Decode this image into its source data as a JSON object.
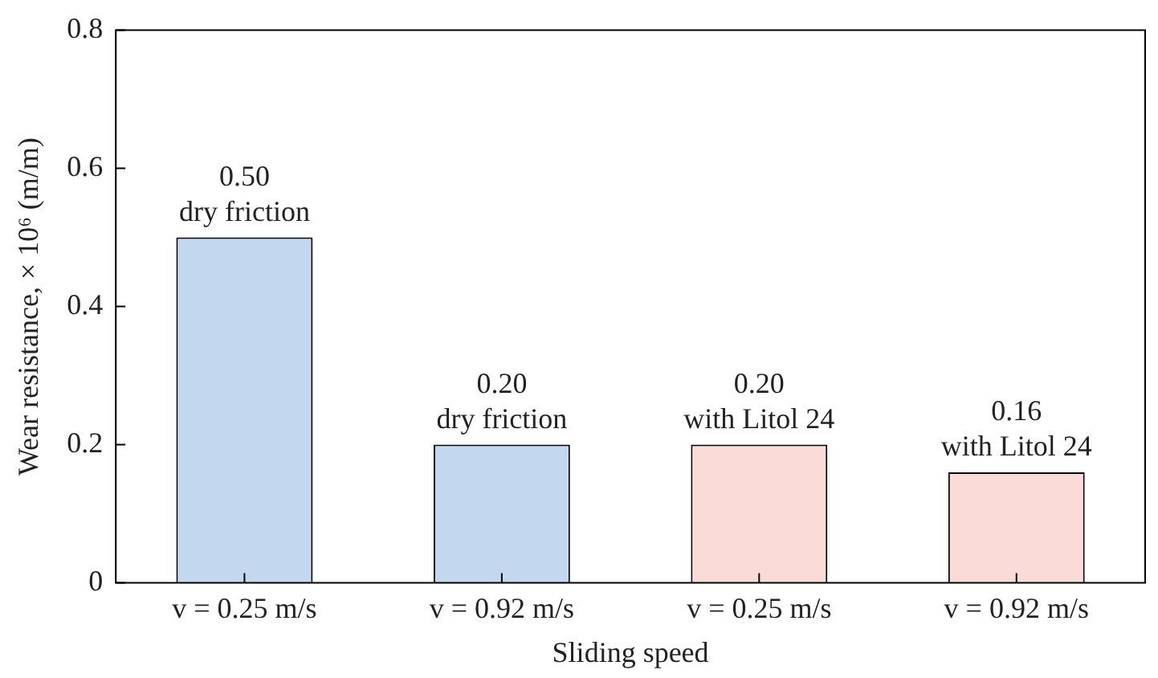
{
  "chart_data": {
    "type": "bar",
    "xlabel": "Sliding speed",
    "ylabel": "Wear resistance, × 10⁶ (m/m)",
    "categories": [
      "v = 0.25 m/s",
      "v = 0.92 m/s",
      "v = 0.25 m/s",
      "v = 0.92 m/s"
    ],
    "values": [
      0.5,
      0.2,
      0.2,
      0.16
    ],
    "colors": [
      "#c3d8ee",
      "#c3d8ee",
      "#fbdbd7",
      "#fbdbd7"
    ],
    "value_labels": [
      "0.50",
      "0.20",
      "0.20",
      "0.16"
    ],
    "annotations": [
      "dry friction",
      "dry friction",
      "with Litol 24",
      "with Litol 24"
    ],
    "ylim": [
      0,
      0.8
    ],
    "yticks": [
      0,
      0.2,
      0.4,
      0.6,
      0.8
    ],
    "grid": false,
    "legend": false
  }
}
